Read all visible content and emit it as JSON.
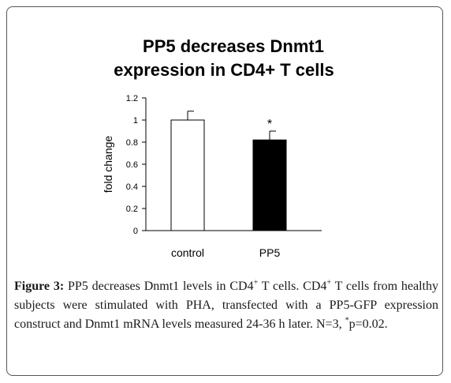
{
  "chart_data": {
    "type": "bar",
    "title_lines": [
      "PP5 decreases  Dnmt1",
      "expression in CD4+  T cells"
    ],
    "categories": [
      "control",
      "PP5"
    ],
    "values": [
      1.0,
      0.82
    ],
    "errors": [
      0.08,
      0.08
    ],
    "bar_colors": [
      "#ffffff",
      "#000000"
    ],
    "significance": [
      "",
      "*"
    ],
    "xlabel": "",
    "ylabel": "fold change",
    "ylim": [
      0,
      1.2
    ],
    "yticks": [
      "0",
      "0.2",
      "0.4",
      "0.6",
      "0.8",
      "1",
      "1.2"
    ],
    "grid": false,
    "legend": "none"
  },
  "caption": {
    "label": "Figure 3:",
    "t1": " PP5 decreases Dnmt1 levels in CD4",
    "sup1": "+",
    "t2": " T cells. CD4",
    "sup2": "+",
    "t3": " T cells from healthy subjects were stimulated with PHA, transfected with a PP5-GFP expression construct and Dnmt1 mRNA levels measured 24-36 h later. N=3, ",
    "sup3": "*",
    "t4": "p=0.02."
  }
}
